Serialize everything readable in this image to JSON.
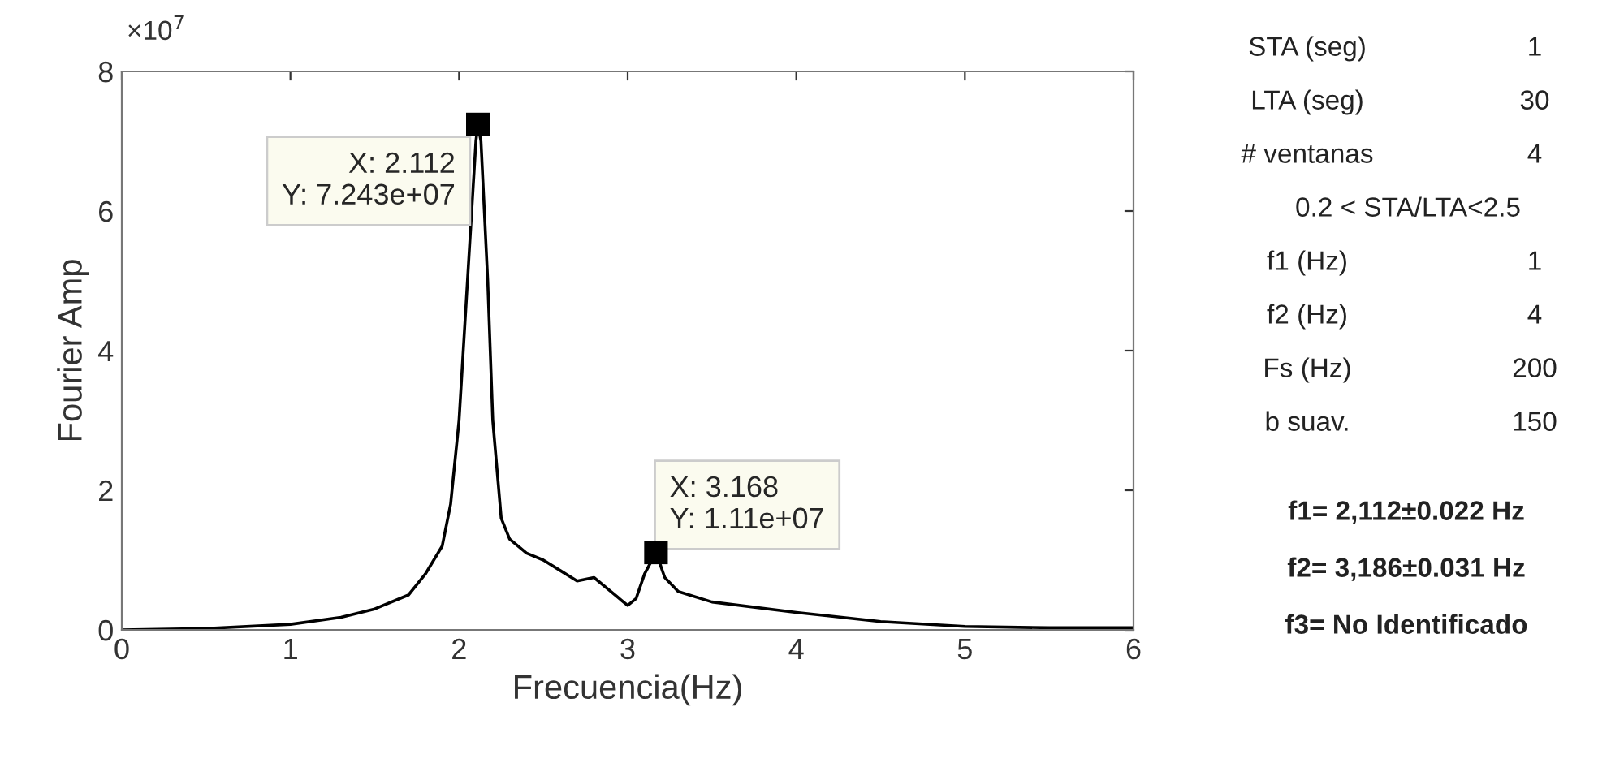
{
  "chart_data": {
    "type": "line",
    "xlabel": "Frecuencia(Hz)",
    "ylabel": "Fourier Amp",
    "xlim": [
      0,
      6
    ],
    "xticks": [
      0,
      1,
      2,
      3,
      4,
      5,
      6
    ],
    "ylim": [
      0,
      8
    ],
    "yticks": [
      0,
      2,
      4,
      6,
      8
    ],
    "grid": false,
    "legend": false,
    "series": [
      {
        "color": "#000000",
        "x": [
          0,
          0.5,
          1,
          1.3,
          1.5,
          1.7,
          1.8,
          1.9,
          1.95,
          2.0,
          2.05,
          2.1,
          2.112,
          2.13,
          2.17,
          2.2,
          2.25,
          2.3,
          2.4,
          2.5,
          2.6,
          2.7,
          2.8,
          2.9,
          3.0,
          3.05,
          3.1,
          3.168,
          3.22,
          3.3,
          3.5,
          4.0,
          4.5,
          5.0,
          5.5,
          6.0
        ],
        "values": [
          0,
          0.02,
          0.08,
          0.18,
          0.3,
          0.5,
          0.8,
          1.2,
          1.8,
          3.0,
          5.0,
          7.0,
          7.24,
          7.0,
          5.0,
          3.0,
          1.6,
          1.3,
          1.1,
          1.0,
          0.85,
          0.7,
          0.75,
          0.55,
          0.35,
          0.45,
          0.8,
          1.11,
          0.75,
          0.55,
          0.4,
          0.25,
          0.12,
          0.05,
          0.03,
          0.03
        ]
      },
      {
        "type": "scatter",
        "marker": "square",
        "color": "#000000",
        "x": [
          2.112,
          3.168
        ],
        "values": [
          7.24,
          1.11
        ]
      }
    ],
    "annotations": [
      {
        "text": "X: 2.112\nY: 7.243e+07",
        "x": 2.112,
        "y": 7.24
      },
      {
        "text": "X: 3.168\nY: 1.11e+07",
        "x": 3.168,
        "y": 1.11
      },
      "×10$^{7}$",
      "STA (seg)\t1",
      "LTA (seg)\t30",
      "# ventanas\t4",
      "0.2 < STA/LTA<2.5",
      "f1 (Hz)\t1",
      "f2 (Hz)\t4",
      "Fs (Hz)\t200",
      "b suav.\t150",
      "f1= 2,112±0.022 Hz",
      "f2= 3,186±0.031 Hz",
      "f3= No Identificado"
    ]
  }
}
